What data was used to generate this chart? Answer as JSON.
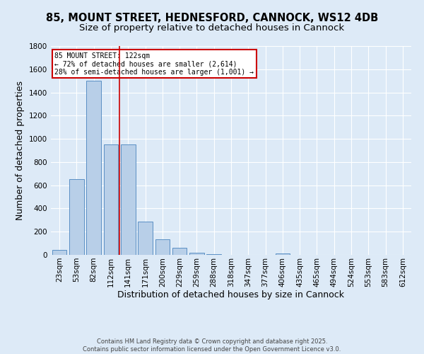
{
  "title_line1": "85, MOUNT STREET, HEDNESFORD, CANNOCK, WS12 4DB",
  "title_line2": "Size of property relative to detached houses in Cannock",
  "xlabel": "Distribution of detached houses by size in Cannock",
  "ylabel": "Number of detached properties",
  "categories": [
    "23sqm",
    "53sqm",
    "82sqm",
    "112sqm",
    "141sqm",
    "171sqm",
    "200sqm",
    "229sqm",
    "259sqm",
    "288sqm",
    "318sqm",
    "347sqm",
    "377sqm",
    "406sqm",
    "435sqm",
    "465sqm",
    "494sqm",
    "524sqm",
    "553sqm",
    "583sqm",
    "612sqm"
  ],
  "values": [
    45,
    650,
    1500,
    950,
    950,
    285,
    135,
    60,
    20,
    8,
    3,
    2,
    1,
    10,
    0,
    0,
    0,
    0,
    0,
    0,
    0
  ],
  "bar_color": "#b8cfe8",
  "bar_edge_color": "#5a8fc4",
  "background_color": "#ddeaf7",
  "grid_color": "#ffffff",
  "red_line_x": 3.5,
  "annotation_text": "85 MOUNT STREET: 122sqm\n← 72% of detached houses are smaller (2,614)\n28% of semi-detached houses are larger (1,001) →",
  "annotation_box_color": "#ffffff",
  "annotation_box_edge_color": "#cc0000",
  "footer_line1": "Contains HM Land Registry data © Crown copyright and database right 2025.",
  "footer_line2": "Contains public sector information licensed under the Open Government Licence v3.0.",
  "ylim": [
    0,
    1800
  ],
  "title_fontsize": 10.5,
  "subtitle_fontsize": 9.5,
  "tick_fontsize": 7.5,
  "label_fontsize": 9,
  "footer_fontsize": 6.0
}
